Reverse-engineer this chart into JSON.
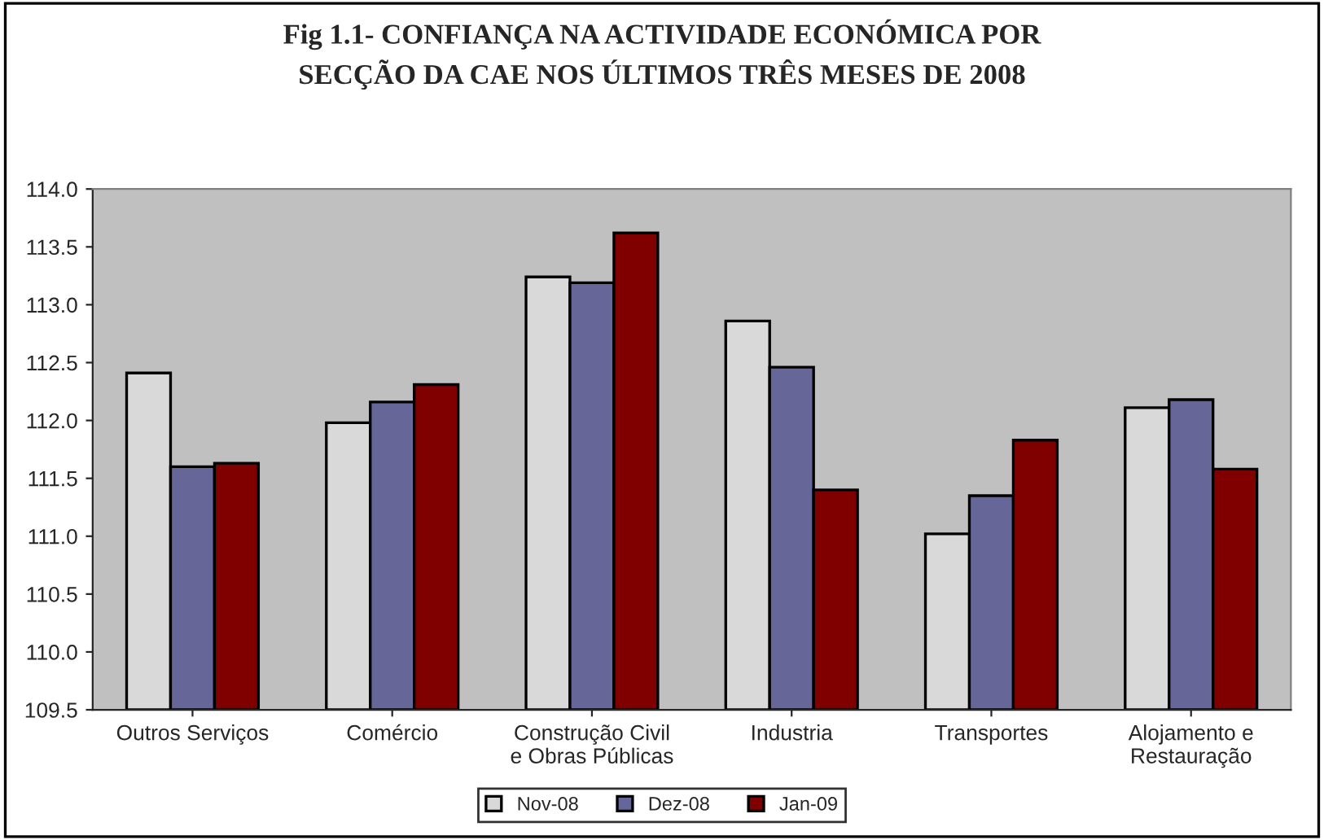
{
  "chart_data": {
    "type": "bar",
    "title": "Fig 1.1- CONFIANÇA NA ACTIVIDADE ECONÓMICA POR\nSECÇÃO DA CAE NOS ÚLTIMOS TRÊS MESES DE 2008",
    "categories": [
      "Outros Serviços",
      "Comércio",
      "Construção Civil\ne Obras Públicas",
      "Industria",
      "Transportes",
      "Alojamento e\nRestauração"
    ],
    "series": [
      {
        "name": "Nov-08",
        "color": "#d9d9d9",
        "values": [
          112.41,
          111.98,
          113.24,
          112.86,
          111.02,
          112.11
        ]
      },
      {
        "name": "Dez-08",
        "color": "#666699",
        "values": [
          111.6,
          112.16,
          113.19,
          112.46,
          111.35,
          112.18
        ]
      },
      {
        "name": "Jan-09",
        "color": "#800000",
        "values": [
          111.63,
          112.31,
          113.62,
          111.4,
          111.83,
          111.58
        ]
      }
    ],
    "ylim": [
      109.5,
      114.0
    ],
    "yticks": [
      {
        "value": 109.5,
        "label": "109.5"
      },
      {
        "value": 110.0,
        "label": "110.0"
      },
      {
        "value": 110.5,
        "label": "110.5"
      },
      {
        "value": 111.0,
        "label": "111.0"
      },
      {
        "value": 111.5,
        "label": "111.5"
      },
      {
        "value": 112.0,
        "label": "112.0"
      },
      {
        "value": 112.5,
        "label": "112.5"
      },
      {
        "value": 113.0,
        "label": "113.0"
      },
      {
        "value": 113.5,
        "label": "113.5"
      },
      {
        "value": 114.0,
        "label": "114.0"
      }
    ],
    "grid": false,
    "legend": "bottom"
  }
}
